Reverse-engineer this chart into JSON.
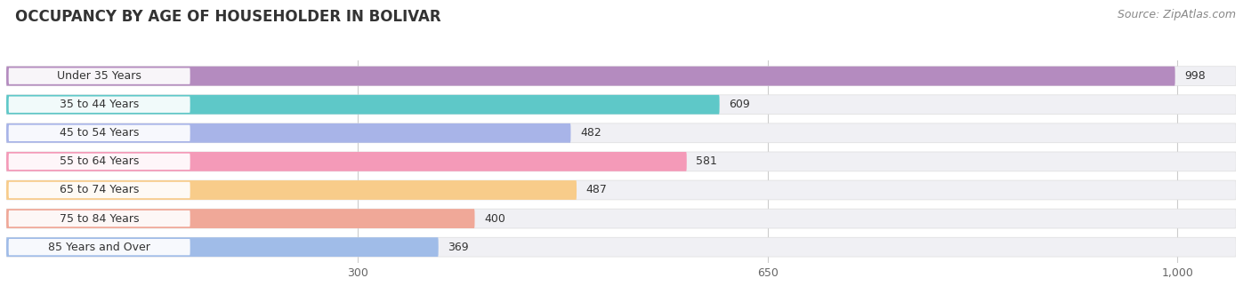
{
  "title": "OCCUPANCY BY AGE OF HOUSEHOLDER IN BOLIVAR",
  "source": "Source: ZipAtlas.com",
  "categories": [
    "Under 35 Years",
    "35 to 44 Years",
    "45 to 54 Years",
    "55 to 64 Years",
    "65 to 74 Years",
    "75 to 84 Years",
    "85 Years and Over"
  ],
  "values": [
    998,
    609,
    482,
    581,
    487,
    400,
    369
  ],
  "bar_colors": [
    "#b48bbf",
    "#5ec8c8",
    "#a8b4e8",
    "#f49ab8",
    "#f8cc8a",
    "#f0a898",
    "#a0bce8"
  ],
  "bar_bg_colors": [
    "#ede8f4",
    "#e0f4f4",
    "#eaecf8",
    "#fce8f0",
    "#fdf0e0",
    "#fce8e4",
    "#e0ecf8"
  ],
  "row_bg_color": "#f0f0f4",
  "label_bg_color": "#ffffff",
  "background_color": "#ffffff",
  "xlim_max": 1050,
  "xticks": [
    300,
    650,
    1000
  ],
  "xticklabels": [
    "300",
    "650",
    "1,000"
  ],
  "title_fontsize": 12,
  "source_fontsize": 9,
  "label_fontsize": 9,
  "value_fontsize": 9
}
